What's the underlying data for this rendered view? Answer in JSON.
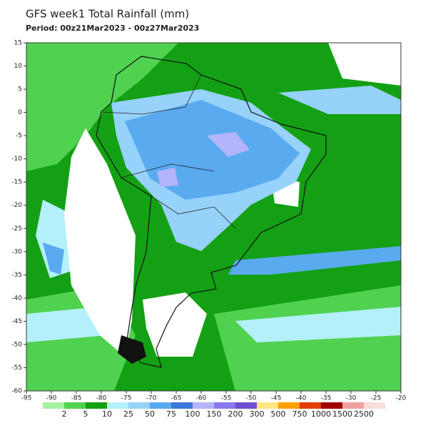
{
  "title": "GFS week1 Total Rainfall (mm)",
  "period": "Period: 00z21Mar2023 - 00z27Mar2023",
  "map": {
    "xlim": [
      -95,
      -20
    ],
    "ylim": [
      -60,
      15
    ],
    "xticks": [
      -95,
      -90,
      -85,
      -80,
      -75,
      -70,
      -65,
      -60,
      -55,
      -50,
      -45,
      -40,
      -35,
      -30,
      -25,
      -20
    ],
    "yticks": [
      15,
      10,
      5,
      0,
      -5,
      -10,
      -15,
      -20,
      -25,
      -30,
      -35,
      -40,
      -45,
      -50,
      -55,
      -60
    ]
  },
  "legend": {
    "levels": [
      2,
      5,
      10,
      25,
      50,
      75,
      100,
      150,
      200,
      300,
      500,
      750,
      1000,
      1500,
      2500
    ],
    "colors": [
      "#ffffff",
      "#a6f2a0",
      "#50d250",
      "#14a014",
      "#b4f0fa",
      "#96d2fa",
      "#5aaaf0",
      "#3c78dc",
      "#b4b4fa",
      "#8c78f0",
      "#7050d2",
      "#ffe680",
      "#ffa000",
      "#e63c00",
      "#a00000",
      "#f0a0a0",
      "#fadcdc"
    ]
  }
}
